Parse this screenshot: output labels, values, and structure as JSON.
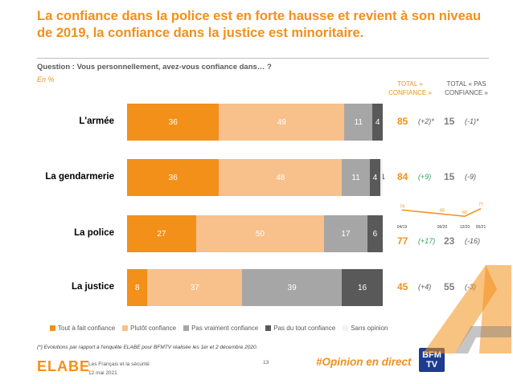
{
  "title": "La confiance dans la police est en forte hausse et revient à son niveau de 2019, la confiance dans la justice est minoritaire.",
  "question": "Question : Vous personnellement, avez-vous confiance dans… ?",
  "unit": "En %",
  "columns": {
    "total_confidence": "TOTAL « CONFIANCE »",
    "total_no_confidence": "TOTAL « PAS CONFIANCE »"
  },
  "colors": {
    "tout_a_fait": "#F29019",
    "plutot": "#F8C08A",
    "pas_vraiment": "#A6A6A6",
    "pas_du_tout": "#595959",
    "sans_opinion": "#F2F2F2",
    "accent": "#F29019"
  },
  "chart_data": {
    "type": "bar",
    "orientation": "horizontal",
    "stacked": true,
    "categories": [
      "L'armée",
      "La gendarmerie",
      "La police",
      "La justice"
    ],
    "series": [
      {
        "name": "Tout à fait confiance",
        "values": [
          36,
          36,
          27,
          8
        ]
      },
      {
        "name": "Plutôt confiance",
        "values": [
          49,
          48,
          50,
          37
        ]
      },
      {
        "name": "Pas vraiment confiance",
        "values": [
          11,
          11,
          17,
          39
        ]
      },
      {
        "name": "Pas du tout confiance",
        "values": [
          4,
          4,
          6,
          16
        ]
      },
      {
        "name": "Sans opinion",
        "values": [
          null,
          1,
          null,
          null
        ]
      }
    ],
    "legend_position": "bottom",
    "totals": [
      {
        "confiance": "85",
        "evol_confiance": "(+2)*",
        "pas_confiance": "15",
        "evol_pas_confiance": "(-1)*"
      },
      {
        "confiance": "84",
        "evol_confiance": "(+9)",
        "pas_confiance": "15",
        "evol_pas_confiance": "(-9)"
      },
      {
        "confiance": "77",
        "evol_confiance": "(+17)",
        "pas_confiance": "23",
        "evol_pas_confiance": "(-16)"
      },
      {
        "confiance": "45",
        "evol_confiance": "(+4)",
        "pas_confiance": "55",
        "evol_pas_confiance": "(-3)"
      }
    ],
    "sparkline": {
      "type": "line",
      "x": [
        "04/19",
        "06/20",
        "12/20",
        "05/21"
      ],
      "values": [
        74,
        65,
        60,
        77
      ]
    }
  },
  "footnote": "(*) Evolutions par rapport à l'enquête ELABE pour BFMTV réalisée les 1er et 2 décembre 2020.",
  "footer": {
    "logo": "ELABE",
    "source_line1": "Les Français et la sécurité",
    "source_line2": "12 mai 2021",
    "page": "13",
    "hashtag": "#Opinion en direct",
    "partner_line1": "BFM",
    "partner_line2": "TV"
  }
}
